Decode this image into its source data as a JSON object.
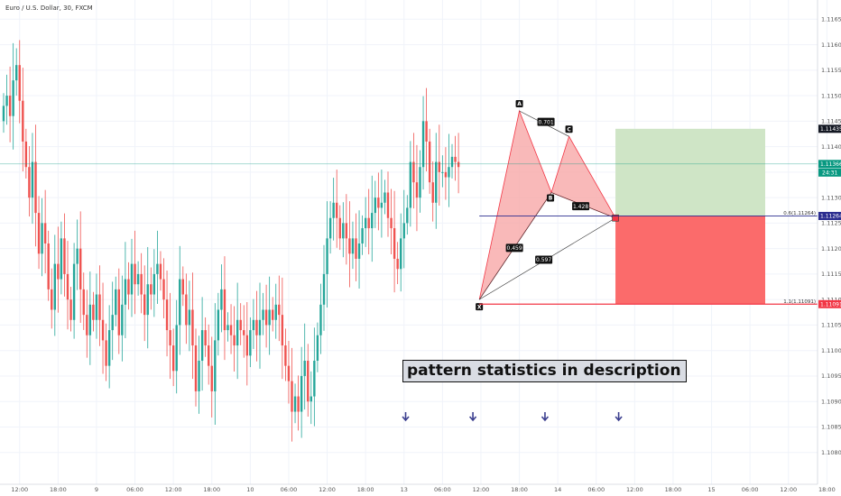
{
  "title": "Euro / U.S. Dollar, 30, FXCM",
  "annotation": "pattern statistics in description",
  "chart_data": {
    "type": "candlestick",
    "title": "Euro / U.S. Dollar, 30, FXCM",
    "symbol": "EURUSD",
    "timeframe": "30",
    "source": "FXCM",
    "ylim": [
      1.1075,
      1.1167
    ],
    "y_ticks": [
      1.108,
      1.1085,
      1.109,
      1.1095,
      1.11,
      1.1105,
      1.111,
      1.1115,
      1.112,
      1.1125,
      1.113,
      1.1135,
      1.114,
      1.1145,
      1.115,
      1.1155,
      1.116,
      1.1165
    ],
    "y_tick_labels": [
      "1.10800",
      "1.10850",
      "1.10900",
      "1.10950",
      "1.11000",
      "1.11050",
      "1.11100",
      "1.11150",
      "1.11200",
      "1.11250",
      "1.11300",
      "1.11350",
      "1.11400",
      "1.11450",
      "1.11500",
      "1.11550",
      "1.11600",
      "1.11650"
    ],
    "x_ticks": [
      "12:00",
      "18:00",
      "9",
      "06:00",
      "12:00",
      "18:00",
      "10",
      "06:00",
      "12:00",
      "18:00",
      "13",
      "06:00",
      "12:00",
      "18:00",
      "14",
      "06:00",
      "12:00",
      "18:00",
      "15",
      "06:00",
      "12:00",
      "18:00"
    ],
    "x_tick_index": [
      5,
      17,
      29,
      41,
      53,
      65,
      77,
      89,
      101,
      113,
      125,
      137,
      149,
      161,
      173,
      185,
      197,
      209,
      221,
      233,
      245,
      257
    ],
    "closes": [
      1.1148,
      1.115,
      1.1146,
      1.1153,
      1.1156,
      1.1149,
      1.1141,
      1.1136,
      1.113,
      1.1137,
      1.1127,
      1.1119,
      1.1125,
      1.1121,
      1.1112,
      1.1108,
      1.1117,
      1.1114,
      1.1122,
      1.1115,
      1.111,
      1.1106,
      1.1117,
      1.112,
      1.1112,
      1.1107,
      1.1103,
      1.1109,
      1.1106,
      1.1111,
      1.1106,
      1.1102,
      1.1097,
      1.1104,
      1.1107,
      1.1112,
      1.1103,
      1.1109,
      1.1114,
      1.1111,
      1.1117,
      1.1113,
      1.1115,
      1.1111,
      1.1107,
      1.1113,
      1.1111,
      1.1115,
      1.1117,
      1.1114,
      1.111,
      1.1104,
      1.1101,
      1.1096,
      1.1105,
      1.1114,
      1.1111,
      1.1105,
      1.1108,
      1.1101,
      1.1092,
      1.1098,
      1.1104,
      1.1101,
      1.1097,
      1.1092,
      1.1102,
      1.1108,
      1.1112,
      1.1104,
      1.1105,
      1.1103,
      1.1101,
      1.1106,
      1.1104,
      1.1103,
      1.1099,
      1.1104,
      1.1106,
      1.1103,
      1.1106,
      1.1108,
      1.1105,
      1.1108,
      1.1106,
      1.1109,
      1.1107,
      1.1101,
      1.1097,
      1.1094,
      1.1088,
      1.1091,
      1.1088,
      1.1095,
      1.1098,
      1.109,
      1.1091,
      1.1098,
      1.1103,
      1.1109,
      1.1115,
      1.1122,
      1.1126,
      1.1129,
      1.1126,
      1.1122,
      1.1125,
      1.1122,
      1.1119,
      1.1122,
      1.1118,
      1.1121,
      1.1124,
      1.1126,
      1.1124,
      1.1127,
      1.113,
      1.1128,
      1.1129,
      1.1131,
      1.1126,
      1.1124,
      1.1118,
      1.1116,
      1.1122,
      1.1125,
      1.1128,
      1.1137,
      1.1133,
      1.113,
      1.1136,
      1.1145,
      1.1141,
      1.1133,
      1.1129,
      1.1137,
      1.1135,
      1.1135,
      1.1134,
      1.1136,
      1.1138,
      1.1137,
      1.1136
    ],
    "harmonic_pattern": {
      "points": [
        {
          "label": "X",
          "price": 1.111
        },
        {
          "label": "A",
          "price": 1.1147
        },
        {
          "label": "B",
          "price": 1.1131
        },
        {
          "label": "C",
          "price": 1.1142
        },
        {
          "label": "D",
          "price": 1.1126
        }
      ],
      "ratios": [
        "0.701",
        "1.428",
        "0.459",
        "0.597"
      ]
    },
    "levels": [
      {
        "label": "0.6(1.11264)",
        "price": 1.11264,
        "tag": "1.11264",
        "color": "#2b2d8f"
      },
      {
        "label": "1.1(1.11091)",
        "price": 1.11091,
        "tag": "1.11091",
        "color": "#f23645"
      },
      {
        "tag": "1.11435",
        "price": 1.11435,
        "color": "#333333"
      },
      {
        "tag": "1.11366",
        "price": 1.11366,
        "color": "#089981"
      }
    ],
    "countdown": "24:31",
    "current_price": 1.11366,
    "grid": true,
    "colors": {
      "up": "#26a69a",
      "down": "#ef5350",
      "pattern_fill": "#f7a8a8",
      "target_zone": "#cfe5c6",
      "stop_zone": "#fb6b6b",
      "arrow": "#3c3f8f"
    }
  }
}
